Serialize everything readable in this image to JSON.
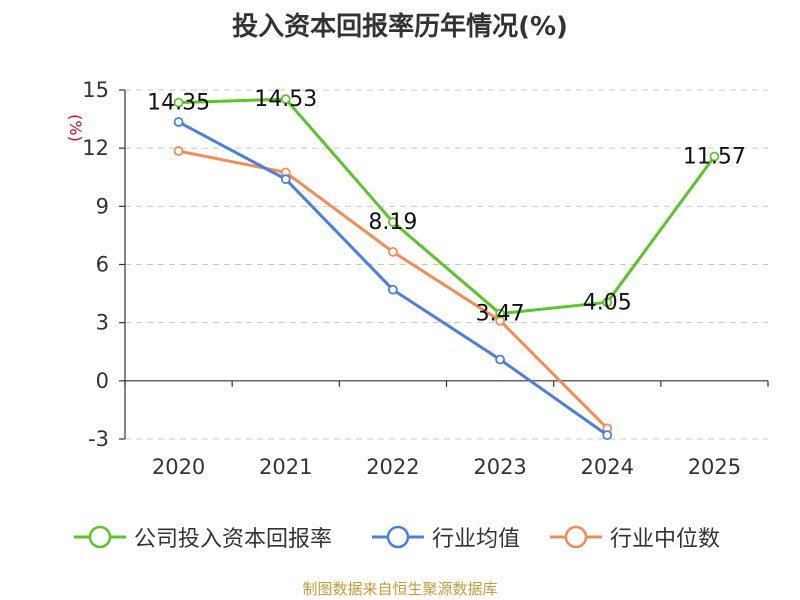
{
  "chart_title": "投入资本回报率历年情况(%)",
  "source_text": "制图数据来自恒生聚源数据库",
  "chart_data": {
    "type": "line",
    "title": "投入资本回报率历年情况(%)",
    "ylabel": "(%)",
    "xlabel": "",
    "categories": [
      "2020",
      "2021",
      "2022",
      "2023",
      "2024",
      "2025"
    ],
    "ylim": [
      -3,
      15
    ],
    "yticks": [
      15,
      12,
      9,
      6,
      3,
      0,
      -3
    ],
    "grid": true,
    "legend_position": "bottom",
    "series": [
      {
        "name": "公司投入资本回报率",
        "color": "#5cc42a",
        "values": [
          14.35,
          14.53,
          8.19,
          3.47,
          4.05,
          11.57
        ],
        "data_labels": [
          "14.35",
          "14.53",
          "8.19",
          "3.47",
          "4.05",
          "11.57"
        ]
      },
      {
        "name": "行业均值",
        "color": "#4a7fdc",
        "values": [
          13.35,
          10.4,
          4.7,
          1.1,
          -2.8,
          null
        ]
      },
      {
        "name": "行业中位数",
        "color": "#f28c55",
        "values": [
          11.85,
          10.75,
          6.65,
          3.1,
          -2.45,
          null
        ]
      }
    ]
  }
}
